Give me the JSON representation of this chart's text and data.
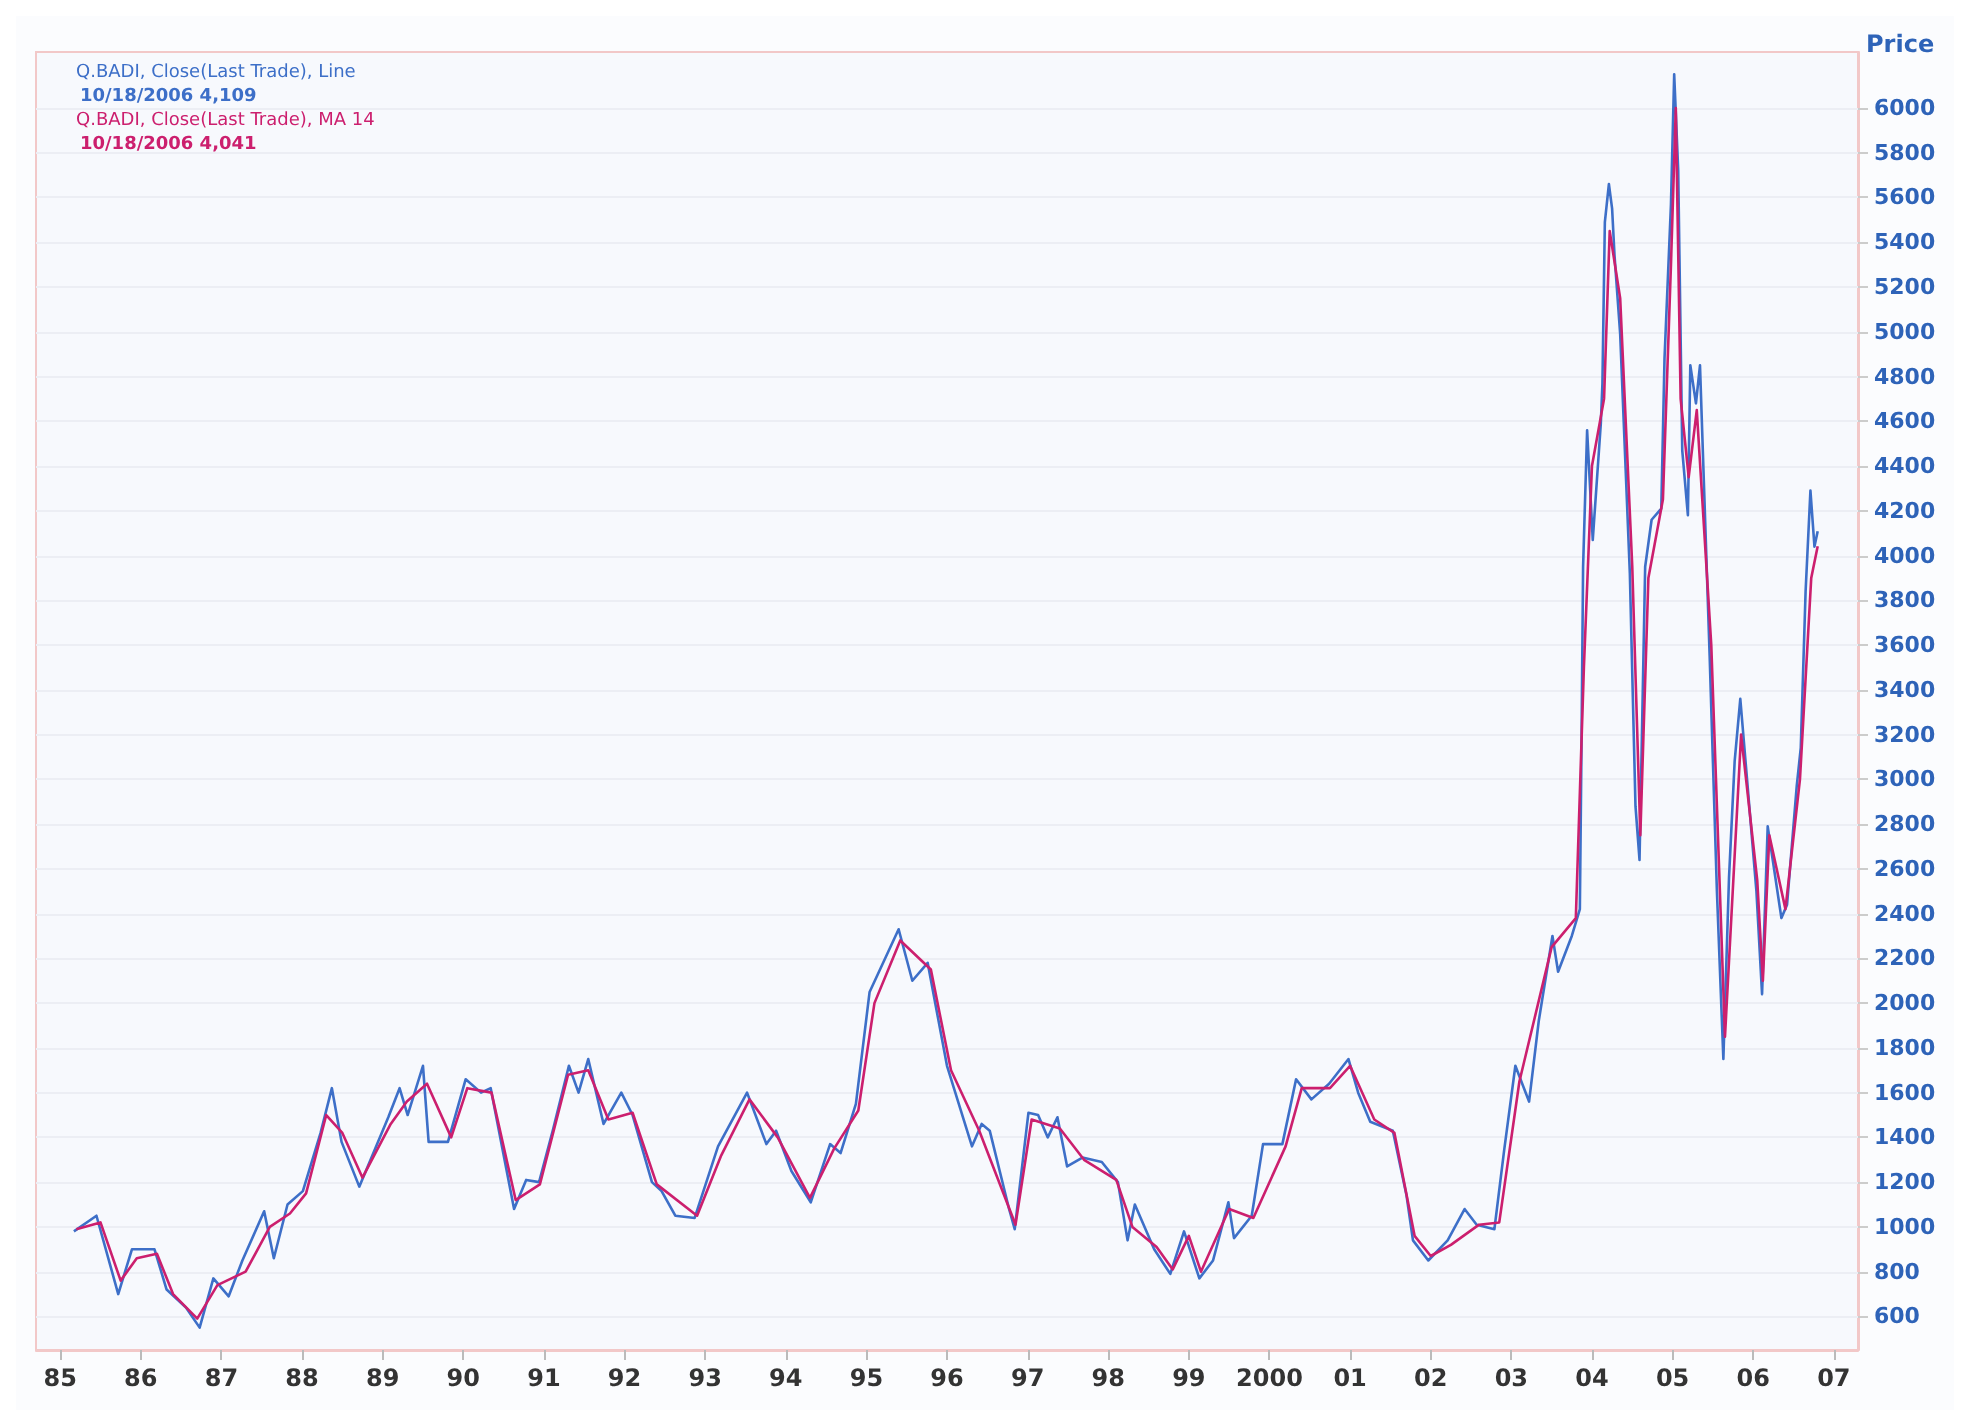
{
  "chart_data": {
    "type": "line",
    "ylabel": "Price",
    "xlim": [
      1984.7,
      2007.3
    ],
    "xticks": [
      {
        "value": 1985,
        "label": "85"
      },
      {
        "value": 1986,
        "label": "86"
      },
      {
        "value": 1987,
        "label": "87"
      },
      {
        "value": 1988,
        "label": "88"
      },
      {
        "value": 1989,
        "label": "89"
      },
      {
        "value": 1990,
        "label": "90"
      },
      {
        "value": 1991,
        "label": "91"
      },
      {
        "value": 1992,
        "label": "92"
      },
      {
        "value": 1993,
        "label": "93"
      },
      {
        "value": 1994,
        "label": "94"
      },
      {
        "value": 1995,
        "label": "95"
      },
      {
        "value": 1996,
        "label": "96"
      },
      {
        "value": 1997,
        "label": "97"
      },
      {
        "value": 1998,
        "label": "98"
      },
      {
        "value": 1999,
        "label": "99"
      },
      2000,
      {
        "value": 2001,
        "label": "01"
      },
      {
        "value": 2002,
        "label": "02"
      },
      {
        "value": 2003,
        "label": "03"
      },
      {
        "value": 2004,
        "label": "04"
      },
      {
        "value": 2005,
        "label": "05"
      },
      {
        "value": 2006,
        "label": "06"
      },
      {
        "value": 2007,
        "label": "07"
      }
    ],
    "ylim": [
      450,
      6250
    ],
    "yticks": [
      600,
      800,
      1000,
      1200,
      1400,
      1600,
      1800,
      2000,
      2200,
      2400,
      2600,
      2800,
      3000,
      3200,
      3400,
      3600,
      3800,
      4000,
      4200,
      4400,
      4600,
      4800,
      5000,
      5200,
      5400,
      5600,
      5800,
      6000
    ],
    "grid": "y",
    "legend": "top left",
    "marker": "none",
    "line_style": "solid",
    "annotations": [
      "10/18/2006 4,109",
      "10/18/2006 4,041"
    ],
    "series": [
      {
        "name": "Q.BADI, Close(Last Trade), Line",
        "color": "#3d6fc8",
        "x": [
          1985.17,
          1985.45,
          1985.72,
          1985.89,
          1986.17,
          1986.32,
          1986.56,
          1986.73,
          1986.9,
          1987.09,
          1987.26,
          1987.53,
          1987.65,
          1987.82,
          1988.01,
          1988.23,
          1988.37,
          1988.49,
          1988.71,
          1989.07,
          1989.21,
          1989.31,
          1989.5,
          1989.57,
          1989.81,
          1990.03,
          1990.22,
          1990.34,
          1990.63,
          1990.78,
          1990.94,
          1991.11,
          1991.31,
          1991.43,
          1991.55,
          1991.74,
          1991.96,
          1992.1,
          1992.34,
          1992.46,
          1992.63,
          1992.87,
          1993.16,
          1993.52,
          1993.76,
          1993.88,
          1994.07,
          1994.31,
          1994.55,
          1994.68,
          1994.87,
          1995.04,
          1995.4,
          1995.57,
          1995.76,
          1996.0,
          1996.31,
          1996.43,
          1996.53,
          1996.77,
          1996.84,
          1997.01,
          1997.13,
          1997.25,
          1997.37,
          1997.49,
          1997.68,
          1997.92,
          1998.12,
          1998.24,
          1998.33,
          1998.57,
          1998.77,
          1998.94,
          1999.13,
          1999.3,
          1999.49,
          1999.56,
          1999.78,
          1999.92,
          2000.16,
          2000.33,
          2000.52,
          2000.74,
          2000.98,
          2001.1,
          2001.25,
          2001.53,
          2001.7,
          2001.78,
          2001.97,
          2002.21,
          2002.42,
          2002.57,
          2002.79,
          2002.91,
          2003.05,
          2003.22,
          2003.34,
          2003.51,
          2003.58,
          2003.75,
          2003.85,
          2003.87,
          2003.89,
          2003.94,
          2004.01,
          2004.11,
          2004.13,
          2004.16,
          2004.21,
          2004.25,
          2004.28,
          2004.35,
          2004.47,
          2004.54,
          2004.59,
          2004.66,
          2004.74,
          2004.86,
          2004.9,
          2004.98,
          2005.02,
          2005.07,
          2005.12,
          2005.19,
          2005.22,
          2005.29,
          2005.34,
          2005.46,
          2005.55,
          2005.63,
          2005.7,
          2005.77,
          2005.84,
          2006.04,
          2006.11,
          2006.18,
          2006.35,
          2006.42,
          2006.54,
          2006.59,
          2006.65,
          2006.71,
          2006.76,
          2006.8
        ],
        "values": [
          980,
          1050,
          700,
          900,
          900,
          720,
          640,
          550,
          770,
          690,
          850,
          1070,
          860,
          1100,
          1160,
          1420,
          1620,
          1380,
          1180,
          1490,
          1620,
          1500,
          1720,
          1380,
          1380,
          1660,
          1600,
          1620,
          1080,
          1210,
          1200,
          1430,
          1720,
          1600,
          1750,
          1460,
          1600,
          1500,
          1200,
          1160,
          1050,
          1040,
          1360,
          1600,
          1370,
          1430,
          1250,
          1110,
          1370,
          1330,
          1550,
          2050,
          2330,
          2100,
          2180,
          1720,
          1360,
          1460,
          1430,
          1080,
          990,
          1510,
          1500,
          1400,
          1490,
          1270,
          1310,
          1290,
          1200,
          940,
          1100,
          900,
          790,
          980,
          770,
          850,
          1110,
          950,
          1050,
          1370,
          1370,
          1660,
          1570,
          1640,
          1750,
          1600,
          1470,
          1430,
          1140,
          940,
          850,
          940,
          1080,
          1010,
          990,
          1340,
          1720,
          1560,
          1920,
          2300,
          2140,
          2300,
          2420,
          3140,
          3950,
          4560,
          4070,
          4590,
          4770,
          5490,
          5660,
          5550,
          5340,
          4990,
          3920,
          2880,
          2640,
          3950,
          4160,
          4210,
          4880,
          5570,
          6150,
          5720,
          4470,
          4180,
          4850,
          4680,
          4850,
          3550,
          2500,
          1750,
          2560,
          3080,
          3360,
          2500,
          2040,
          2790,
          2380,
          2440,
          2970,
          3140,
          3840,
          4290,
          4040,
          4109
        ]
      },
      {
        "name": "Q.BADI, Close(Last Trade), MA 14",
        "color": "#cc1f6e",
        "x": [
          1985.2,
          1985.5,
          1985.75,
          1985.95,
          1986.2,
          1986.4,
          1986.7,
          1986.95,
          1987.3,
          1987.6,
          1987.85,
          1988.05,
          1988.3,
          1988.5,
          1988.75,
          1989.1,
          1989.3,
          1989.55,
          1989.85,
          1990.05,
          1990.35,
          1990.65,
          1990.95,
          1991.3,
          1991.55,
          1991.8,
          1992.1,
          1992.4,
          1992.9,
          1993.2,
          1993.55,
          1993.9,
          1994.3,
          1994.6,
          1994.9,
          1995.1,
          1995.42,
          1995.8,
          1996.05,
          1996.4,
          1996.85,
          1997.05,
          1997.4,
          1997.7,
          1998.1,
          1998.3,
          1998.6,
          1998.8,
          1999.0,
          1999.15,
          1999.5,
          1999.8,
          2000.2,
          2000.4,
          2000.75,
          2001.0,
          2001.3,
          2001.55,
          2001.8,
          2002.0,
          2002.25,
          2002.6,
          2002.85,
          2003.1,
          2003.5,
          2003.8,
          2003.9,
          2004.0,
          2004.15,
          2004.22,
          2004.35,
          2004.5,
          2004.6,
          2004.7,
          2004.88,
          2004.98,
          2005.04,
          2005.1,
          2005.2,
          2005.3,
          2005.48,
          2005.65,
          2005.85,
          2006.05,
          2006.12,
          2006.2,
          2006.4,
          2006.58,
          2006.72,
          2006.8
        ],
        "values": [
          990,
          1020,
          760,
          860,
          880,
          700,
          590,
          740,
          800,
          1000,
          1060,
          1150,
          1500,
          1420,
          1220,
          1460,
          1560,
          1640,
          1400,
          1620,
          1600,
          1120,
          1190,
          1680,
          1700,
          1480,
          1510,
          1190,
          1050,
          1320,
          1570,
          1400,
          1130,
          1350,
          1520,
          2000,
          2280,
          2150,
          1700,
          1430,
          1010,
          1480,
          1440,
          1300,
          1210,
          1000,
          910,
          810,
          960,
          800,
          1080,
          1040,
          1360,
          1620,
          1620,
          1720,
          1480,
          1420,
          960,
          870,
          920,
          1010,
          1020,
          1650,
          2250,
          2380,
          3500,
          4400,
          4700,
          5450,
          5150,
          3950,
          2750,
          3900,
          4250,
          5300,
          6000,
          4700,
          4350,
          4650,
          3600,
          1850,
          3200,
          2550,
          2100,
          2750,
          2420,
          3000,
          3900,
          4041
        ]
      }
    ]
  }
}
